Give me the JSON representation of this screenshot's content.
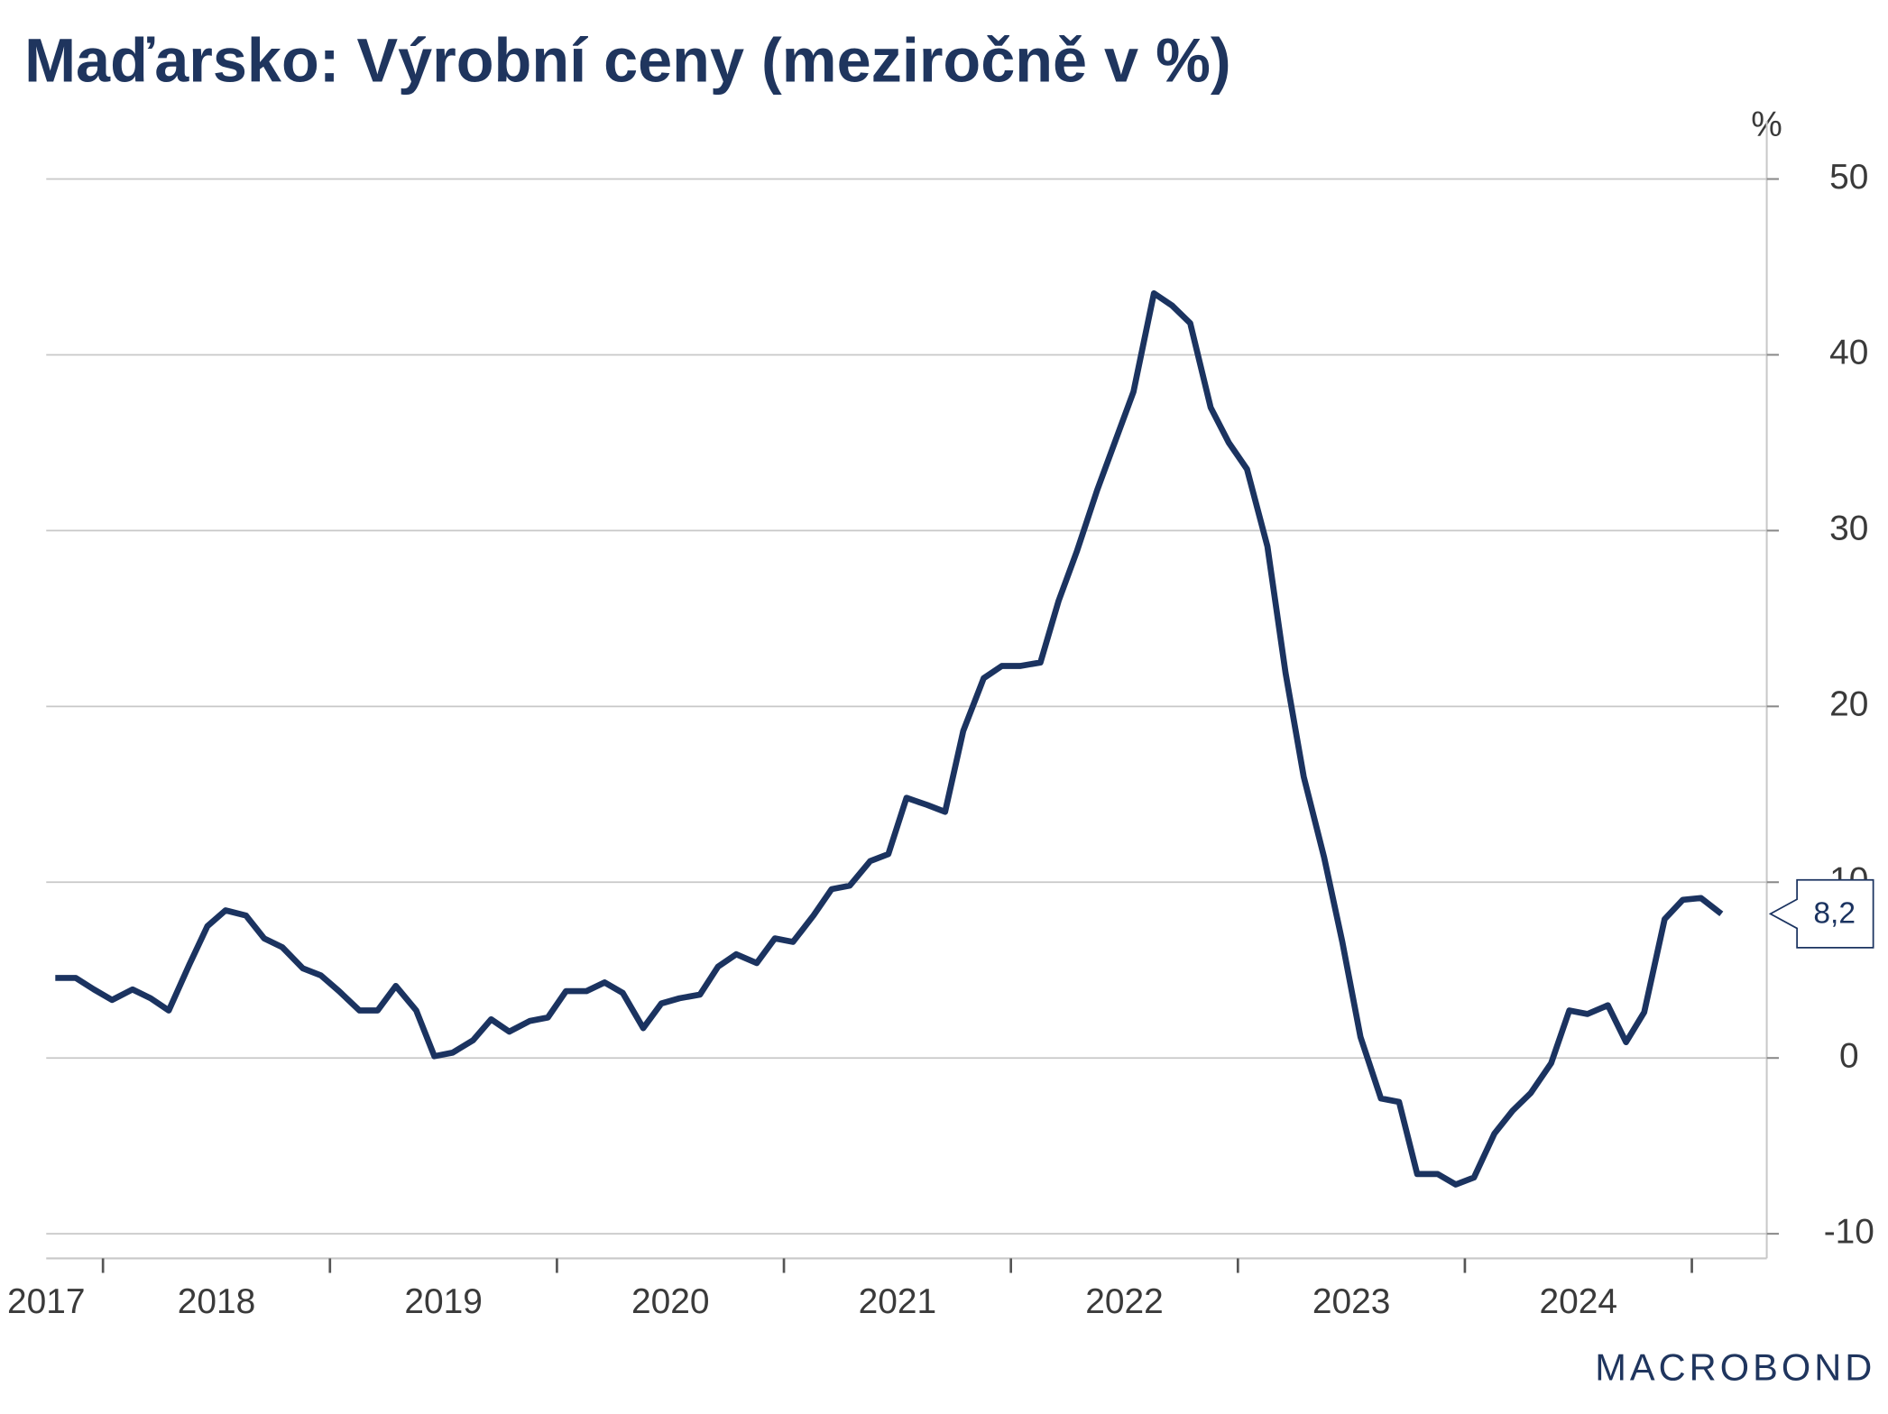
{
  "chart_data": {
    "type": "line",
    "title": "Maďarsko: Výrobní ceny (meziročně v %)",
    "y_unit": "%",
    "logo": "MACROBOND",
    "end_label": "8,2",
    "x": [
      2017.79,
      2017.88,
      2017.96,
      2018.04,
      2018.13,
      2018.21,
      2018.29,
      2018.38,
      2018.46,
      2018.54,
      2018.63,
      2018.71,
      2018.79,
      2018.88,
      2018.96,
      2019.04,
      2019.13,
      2019.21,
      2019.29,
      2019.38,
      2019.46,
      2019.54,
      2019.63,
      2019.71,
      2019.79,
      2019.88,
      2019.96,
      2020.04,
      2020.13,
      2020.21,
      2020.29,
      2020.38,
      2020.46,
      2020.54,
      2020.63,
      2020.71,
      2020.79,
      2020.88,
      2020.96,
      2021.04,
      2021.13,
      2021.21,
      2021.29,
      2021.38,
      2021.46,
      2021.54,
      2021.63,
      2021.71,
      2021.79,
      2021.88,
      2021.96,
      2022.04,
      2022.13,
      2022.21,
      2022.29,
      2022.38,
      2022.46,
      2022.54,
      2022.63,
      2022.71,
      2022.79,
      2022.88,
      2022.96,
      2023.04,
      2023.13,
      2023.21,
      2023.29,
      2023.38,
      2023.46,
      2023.54,
      2023.63,
      2023.71,
      2023.79,
      2023.88,
      2023.96,
      2024.04,
      2024.13,
      2024.21,
      2024.29,
      2024.38,
      2024.46,
      2024.54,
      2024.63,
      2024.71,
      2024.79,
      2024.88,
      2024.96,
      2025.04,
      2025.13
    ],
    "series": [
      {
        "color": "#1b3360",
        "values": [
          4.55,
          4.55,
          3.9,
          3.3,
          3.9,
          3.4,
          2.7,
          5.3,
          7.5,
          8.4,
          8.1,
          6.8,
          6.3,
          5.1,
          4.7,
          3.8,
          2.7,
          2.7,
          4.1,
          2.7,
          0.1,
          0.3,
          1.0,
          2.2,
          1.5,
          2.1,
          2.3,
          3.8,
          3.8,
          4.3,
          3.7,
          1.7,
          3.1,
          3.4,
          3.6,
          5.2,
          5.9,
          5.4,
          6.8,
          6.6,
          8.1,
          9.6,
          9.8,
          11.2,
          11.6,
          14.8,
          14.4,
          14.0,
          18.6,
          21.6,
          22.3,
          22.3,
          22.5,
          26.0,
          28.8,
          32.3,
          35.1,
          37.9,
          43.5,
          42.8,
          41.8,
          37.0,
          35.0,
          33.5,
          29.1,
          21.9,
          16.0,
          11.4,
          6.6,
          1.2,
          -2.3,
          -2.5,
          -6.6,
          -6.6,
          -7.2,
          -6.8,
          -4.3,
          -3.0,
          -2.0,
          -0.3,
          2.7,
          2.5,
          3.0,
          0.9,
          2.6,
          7.9,
          9.0,
          9.1,
          8.2
        ]
      }
    ],
    "xlim": [
      2017.75,
      2025.33
    ],
    "xticks": [
      2018,
      2019,
      2020,
      2021,
      2022,
      2023,
      2024,
      2025
    ],
    "x_labels": [
      2017,
      2018,
      2019,
      2020,
      2021,
      2022,
      2023,
      2024
    ],
    "ylim": [
      -11.4,
      50
    ],
    "yticks": [
      -10,
      0,
      10,
      20,
      30,
      40,
      50
    ],
    "grid": true
  }
}
